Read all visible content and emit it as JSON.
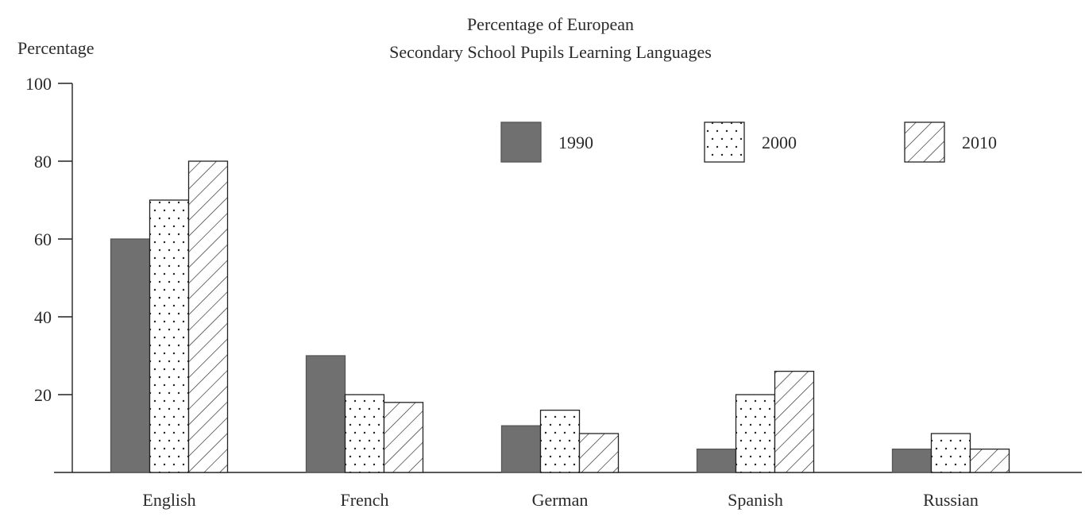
{
  "chart_data": {
    "type": "bar",
    "title": "Percentage of European\nSecondary School Pupils Learning Languages",
    "title_lines": [
      "Percentage of European",
      "Secondary School Pupils Learning Languages"
    ],
    "ylabel": "Percentage",
    "xlabel": "",
    "ylim": [
      0,
      100
    ],
    "yticks": [
      20,
      40,
      60,
      80,
      100
    ],
    "grid": false,
    "legend_position": "top-right",
    "categories": [
      "English",
      "French",
      "German",
      "Spanish",
      "Russian"
    ],
    "series": [
      {
        "name": "1990",
        "pattern": "solid",
        "color": "#707070",
        "values": [
          60,
          30,
          12,
          6,
          6
        ]
      },
      {
        "name": "2000",
        "pattern": "dots",
        "color": "#ffffff",
        "values": [
          70,
          20,
          16,
          20,
          10
        ]
      },
      {
        "name": "2010",
        "pattern": "hatch",
        "color": "#ffffff",
        "values": [
          80,
          18,
          10,
          26,
          6
        ]
      }
    ]
  }
}
